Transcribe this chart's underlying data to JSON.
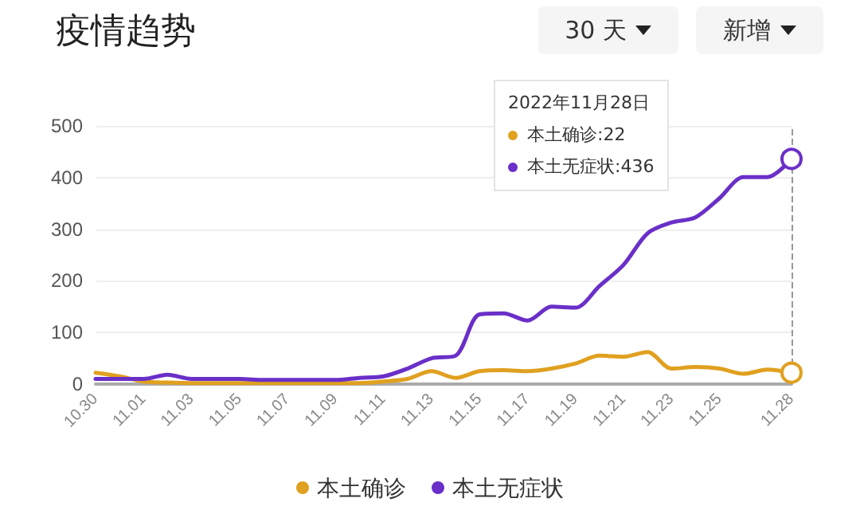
{
  "chart_data": {
    "type": "line",
    "title": "疫情趋势",
    "categories": [
      "10.30",
      null,
      "11.01",
      null,
      "11.03",
      null,
      "11.05",
      null,
      "11.07",
      null,
      "11.09",
      null,
      "11.11",
      null,
      "11.13",
      null,
      "11.15",
      null,
      "11.17",
      null,
      "11.19",
      null,
      "11.21",
      null,
      "11.23",
      null,
      "11.25",
      null,
      null,
      "11.28"
    ],
    "series": [
      {
        "name": "本土确诊",
        "color": "#e0a020",
        "values": [
          22,
          15,
          5,
          3,
          2,
          2,
          2,
          2,
          2,
          2,
          2,
          2,
          5,
          10,
          25,
          12,
          25,
          27,
          25,
          30,
          40,
          55,
          53,
          62,
          30,
          33,
          30,
          20,
          28,
          22
        ]
      },
      {
        "name": "本土无症状",
        "color": "#6a2fc8",
        "values": [
          10,
          10,
          10,
          18,
          10,
          10,
          10,
          8,
          8,
          8,
          8,
          12,
          15,
          30,
          50,
          55,
          135,
          137,
          123,
          150,
          148,
          190,
          231,
          292,
          313,
          323,
          360,
          401,
          401,
          436
        ]
      }
    ],
    "ylim": [
      0,
      500
    ],
    "yticks": [
      0,
      100,
      200,
      300,
      400,
      500
    ],
    "grid": "y",
    "legend": "bottom",
    "marker": "none",
    "line_style": "solid",
    "ref_lines": [
      {
        "axis": "x",
        "value": "11.28",
        "line_style": "dashed",
        "color": "#999999"
      }
    ],
    "annotations": [
      "30 天",
      "新增",
      "2022年11月28日",
      "本土确诊:22",
      "本土无症状:436"
    ]
  }
}
